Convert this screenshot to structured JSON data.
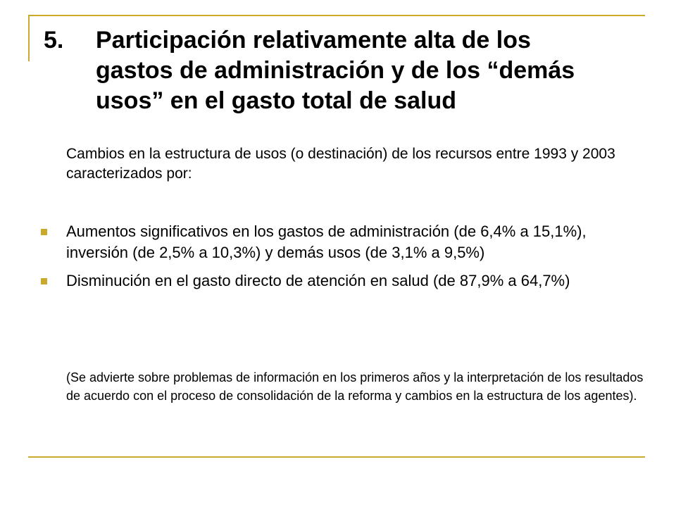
{
  "title": {
    "number": "5.",
    "text": "Participación relativamente alta de los gastos de administración y de los “demás usos” en el gasto total de salud"
  },
  "intro": "Cambios en la estructura de usos (o destinación) de los recursos entre 1993 y 2003 caracterizados por:",
  "bullets": [
    {
      "text": "Aumentos significativos en los gastos de administración (de 6,4% a 15,1%), inversión (de 2,5% a 10,3%) y demás usos (de 3,1% a 9,5%)"
    },
    {
      "text": "Disminución en el gasto directo de atención en salud (de 87,9% a 64,7%)"
    }
  ],
  "note": "(Se advierte sobre problemas de información en los primeros años y la interpretación de los resultados de acuerdo con el proceso de consolidación de la reforma y cambios en la estructura de los agentes).",
  "colors": {
    "accent": "#c9aa2d",
    "text": "#000000",
    "background": "#ffffff"
  }
}
